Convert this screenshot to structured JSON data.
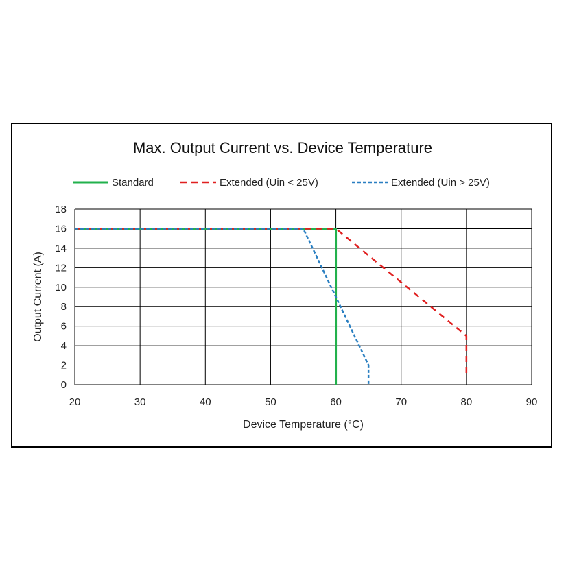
{
  "chart_data": {
    "type": "line",
    "title": "Max. Output Current vs. Device Temperature",
    "xlabel": "Device Temperature (°C)",
    "ylabel": "Output Current (A)",
    "xlim": [
      20,
      90
    ],
    "ylim": [
      0,
      18
    ],
    "xticks": [
      20,
      30,
      40,
      50,
      60,
      70,
      80,
      90
    ],
    "yticks": [
      0,
      2,
      4,
      6,
      8,
      10,
      12,
      14,
      16,
      18
    ],
    "grid": true,
    "legend_position": "top",
    "series": [
      {
        "name": "Standard",
        "color": "#22b14c",
        "style": "solid",
        "points": [
          [
            20,
            16
          ],
          [
            60,
            16
          ],
          [
            60,
            0
          ]
        ]
      },
      {
        "name": "Extended  (Uin < 25V)",
        "color": "#e02020",
        "style": "dashed",
        "points": [
          [
            20,
            16
          ],
          [
            60,
            16
          ],
          [
            80,
            5
          ],
          [
            80,
            0.7
          ]
        ]
      },
      {
        "name": "Extended  (Uin > 25V)",
        "color": "#2a7fc1",
        "style": "dotted-dash",
        "points": [
          [
            20,
            16
          ],
          [
            55,
            16
          ],
          [
            65,
            2
          ],
          [
            65,
            0
          ]
        ]
      }
    ]
  }
}
